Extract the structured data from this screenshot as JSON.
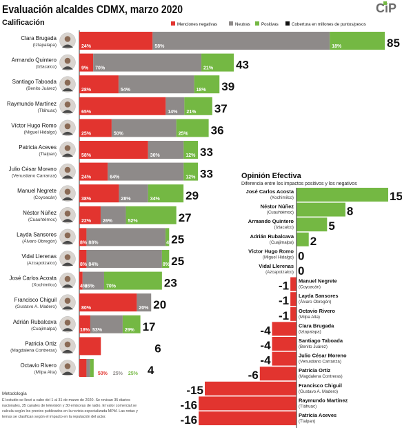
{
  "title": "Evaluación alcaldes CDMX, marzo 2020",
  "logo": "CiP",
  "section_label": "Calificación",
  "legend": [
    {
      "label": "Menciones negativas",
      "color": "#e2342f"
    },
    {
      "label": "Neutras",
      "color": "#8e8a89"
    },
    {
      "label": "Positivas",
      "color": "#74b843"
    },
    {
      "label": "Cobertura en millones de puntos/pesos",
      "color": "#111111"
    }
  ],
  "colors": {
    "negative": "#e2342f",
    "neutral": "#8e8a89",
    "positive": "#74b843"
  },
  "chart_data": [
    {
      "type": "bar",
      "title": "Calificación",
      "series_names": [
        "Menciones negativas",
        "Neutras",
        "Positivas"
      ],
      "items": [
        {
          "name": "Clara Brugada",
          "borough": "(Iztapalapa)",
          "score": 85,
          "pct": [
            24,
            58,
            18
          ]
        },
        {
          "name": "Armando Quintero",
          "borough": "(Iztacalco)",
          "score": 43,
          "pct": [
            9,
            70,
            21
          ]
        },
        {
          "name": "Santiago Taboada",
          "borough": "(Benito Juárez)",
          "score": 39,
          "pct": [
            28,
            54,
            18
          ]
        },
        {
          "name": "Raymundo Martínez",
          "borough": "(Tláhuac)",
          "score": 37,
          "pct": [
            65,
            14,
            21
          ]
        },
        {
          "name": "Víctor Hugo Romo",
          "borough": "(Miguel Hidalgo)",
          "score": 36,
          "pct": [
            25,
            50,
            25
          ]
        },
        {
          "name": "Patricia Aceves",
          "borough": "(Tlalpan)",
          "score": 33,
          "pct": [
            58,
            30,
            12
          ]
        },
        {
          "name": "Julio César Moreno",
          "borough": "(Venustiano Carranza)",
          "score": 33,
          "pct": [
            24,
            64,
            12
          ]
        },
        {
          "name": "Manuel Negrete",
          "borough": "(Coyoacán)",
          "score": 29,
          "pct": [
            38,
            28,
            34
          ]
        },
        {
          "name": "Néstor Núñez",
          "borough": "(Cuauhtémoc)",
          "score": 27,
          "pct": [
            22,
            26,
            52
          ]
        },
        {
          "name": "Layda Sansores",
          "borough": "(Álvaro Obregón)",
          "score": 25,
          "pct": [
            8,
            88,
            4
          ]
        },
        {
          "name": "Vidal Llerenas",
          "borough": "(Azcapotzalco)",
          "score": 25,
          "pct": [
            8,
            84,
            8
          ]
        },
        {
          "name": "José Carlos Acosta",
          "borough": "(Xochimilco)",
          "score": 23,
          "pct": [
            4,
            26,
            70
          ]
        },
        {
          "name": "Francisco Chiguil",
          "borough": "(Gustavo A. Madero)",
          "score": 20,
          "pct": [
            80,
            20,
            0
          ]
        },
        {
          "name": "Adrián Rubalcava",
          "borough": "(Cuajimalpa)",
          "score": 17,
          "pct": [
            18,
            53,
            29
          ]
        },
        {
          "name": "Patricia Ortiz",
          "borough": "(Magdalena Contreras)",
          "score": 6,
          "pct": [
            100,
            0,
            0
          ]
        },
        {
          "name": "Octavio Rivero",
          "borough": "(Milpa Alta)",
          "score": 4,
          "pct": [
            50,
            25,
            25
          ]
        }
      ]
    },
    {
      "type": "bar",
      "title": "Opinión Efectiva",
      "subtitle": "Diferencia entre los impactos positivos y los negativos",
      "items": [
        {
          "name": "José Carlos Acosta",
          "borough": "(Xochimilco)",
          "value": 15
        },
        {
          "name": "Néstor Núñez",
          "borough": "(Cuauhtémoc)",
          "value": 8
        },
        {
          "name": "Armando Quintero",
          "borough": "(Iztacalco)",
          "value": 5
        },
        {
          "name": "Adrián Rubalcava",
          "borough": "(Cuajimalpa)",
          "value": 2
        },
        {
          "name": "Víctor Hugo Romo",
          "borough": "(Miguel Hidalgo)",
          "value": 0
        },
        {
          "name": "Vidal Llerenas",
          "borough": "(Azcapotzalco)",
          "value": 0
        },
        {
          "name": "Manuel Negrete",
          "borough": "(Coyoacán)",
          "value": -1
        },
        {
          "name": "Layda Sansores",
          "borough": "(Álvaro Obregón)",
          "value": -1
        },
        {
          "name": "Octavio Rivero",
          "borough": "(Milpa Alta)",
          "value": -1
        },
        {
          "name": "Clara Brugada",
          "borough": "(Iztapalapa)",
          "value": -4
        },
        {
          "name": "Santiago Taboada",
          "borough": "(Benito Juárez)",
          "value": -4
        },
        {
          "name": "Julio César Moreno",
          "borough": "(Venustiano Carranza)",
          "value": -4
        },
        {
          "name": "Patricia Ortiz",
          "borough": "(Magdalena Contreras)",
          "value": -6
        },
        {
          "name": "Francisco Chiguil",
          "borough": "(Gustavo A. Madero)",
          "value": -15
        },
        {
          "name": "Raymundo Martínez",
          "borough": "(Tláhuac)",
          "value": -16
        },
        {
          "name": "Patricia Aceves",
          "borough": "(Tlalpan)",
          "value": -16
        }
      ]
    }
  ],
  "methodology": {
    "heading": "Metodología",
    "lines": [
      "El estudio se llevó a cabo del 1 al 31 de marzo de 2020. Se revisan 35 diarios",
      "nacionales, 35 canales de televisión y 30 emisoras de radio. El valor comercial se",
      "calcula según los precios publicados en la revista especializada MPM. Las notas y",
      "temas se clasifican según el impacto en la reputación del actor."
    ]
  }
}
